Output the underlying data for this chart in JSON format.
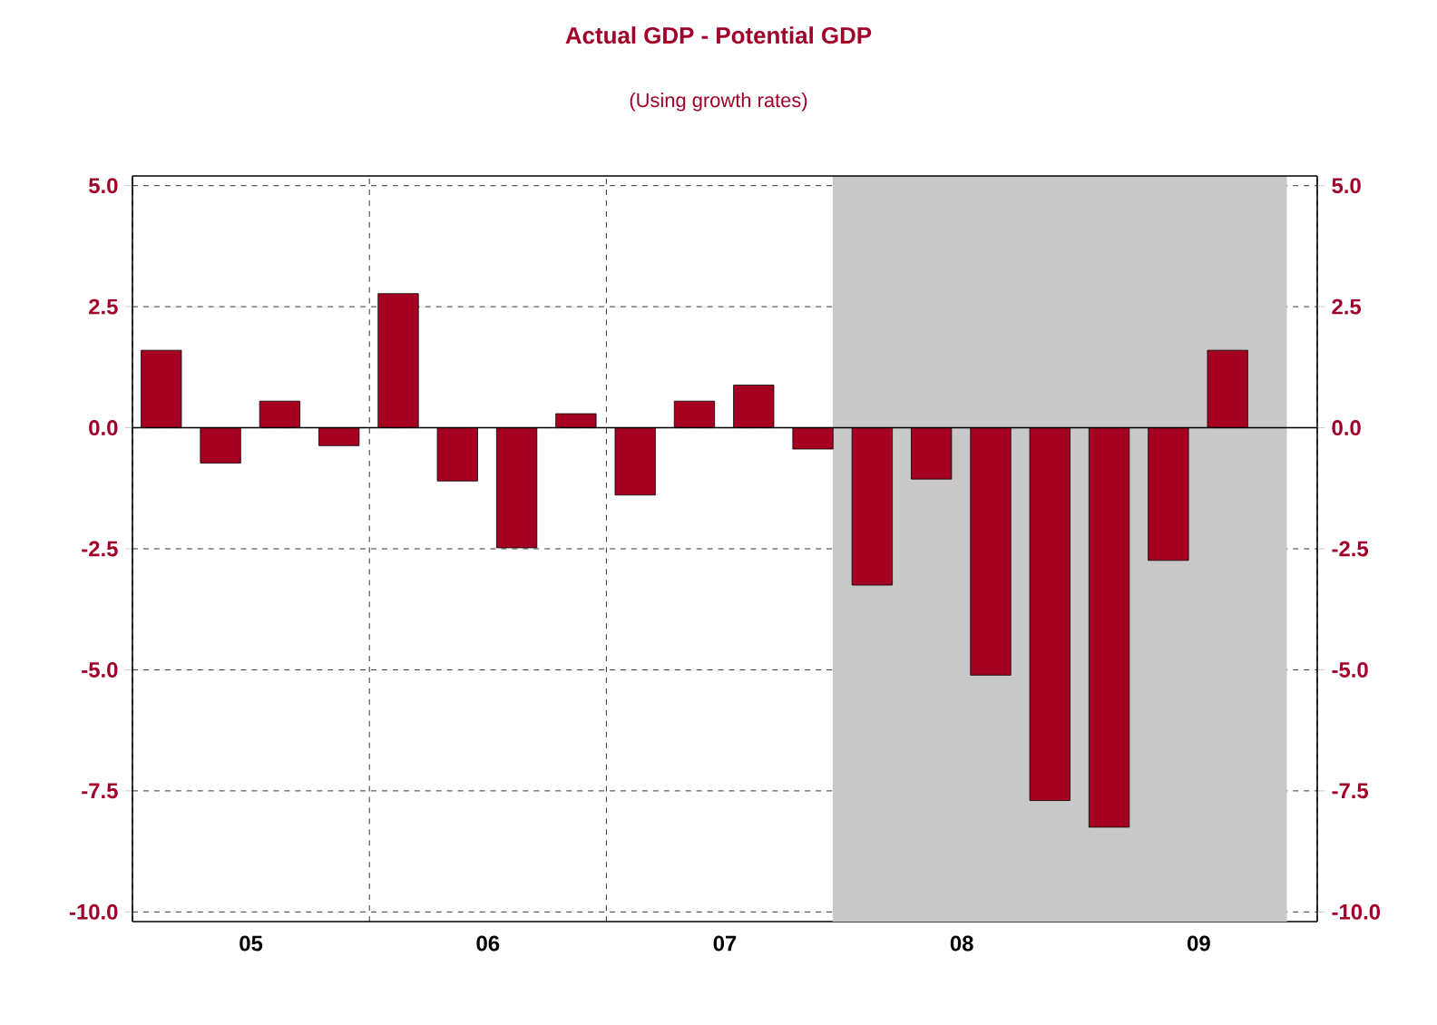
{
  "chart_data": {
    "type": "bar",
    "title": "Actual GDP - Potential GDP",
    "subtitle": "(Using growth rates)",
    "x": [
      "2005-02-15",
      "2005-05-15",
      "2005-08-15",
      "2005-11-15",
      "2006-02-15",
      "2006-05-15",
      "2006-08-15",
      "2006-11-15",
      "2007-02-15",
      "2007-05-15",
      "2007-08-15",
      "2007-11-15",
      "2008-02-15",
      "2008-05-15",
      "2008-08-15",
      "2008-11-15",
      "2009-02-15",
      "2009-05-15",
      "2009-08-15"
    ],
    "values": [
      1.6,
      -0.73,
      0.55,
      -0.37,
      2.77,
      -1.1,
      -2.48,
      0.29,
      -1.39,
      0.55,
      0.88,
      -0.44,
      -3.25,
      -1.06,
      -5.11,
      -7.7,
      -8.25,
      -2.74,
      1.6
    ],
    "color": "#a50021",
    "xlim": [
      "2005-01-01",
      "2010-01-01"
    ],
    "xticks": [
      {
        "value": "2005-01-01",
        "label": null
      },
      {
        "value": "2005-07-01",
        "label": "05"
      },
      {
        "value": "2006-01-01",
        "label": null
      },
      {
        "value": "2006-07-01",
        "label": "06"
      },
      {
        "value": "2007-01-01",
        "label": null
      },
      {
        "value": "2007-07-01",
        "label": "07"
      },
      {
        "value": "2008-01-01",
        "label": null
      },
      {
        "value": "2008-07-01",
        "label": "08"
      },
      {
        "value": "2009-01-01",
        "label": null
      },
      {
        "value": "2009-07-01",
        "label": "09"
      },
      {
        "value": "2010-01-01",
        "label": null
      }
    ],
    "ylim": [
      -10.2,
      5.2
    ],
    "yticks": [
      {
        "value": -10,
        "label": "-10.0"
      },
      {
        "value": -7.5,
        "label": "-7.5"
      },
      {
        "value": -5,
        "label": "-5.0"
      },
      {
        "value": -2.5,
        "label": "-2.5"
      },
      {
        "value": 0,
        "label": "0.0"
      },
      {
        "value": 2.5,
        "label": "2.5"
      },
      {
        "value": 5,
        "label": "5.0"
      }
    ],
    "y2lim": [
      -10.2,
      5.2
    ],
    "y2ticks": [
      {
        "value": -10,
        "label": "-10.0"
      },
      {
        "value": -7.5,
        "label": "-7.5"
      },
      {
        "value": -5,
        "label": "-5.0"
      },
      {
        "value": -2.5,
        "label": "-2.5"
      },
      {
        "value": 0,
        "label": "0.0"
      },
      {
        "value": 2.5,
        "label": "2.5"
      },
      {
        "value": 5,
        "label": "5.0"
      }
    ],
    "bands": [
      {
        "axis": "x",
        "from": "2007-12-15",
        "to": "2009-11-15",
        "color": "#c8c8c8"
      }
    ],
    "ref_lines": [
      {
        "axis": "y",
        "value": 0,
        "color": "#000000",
        "line_style": "solid"
      }
    ],
    "grid": true
  }
}
